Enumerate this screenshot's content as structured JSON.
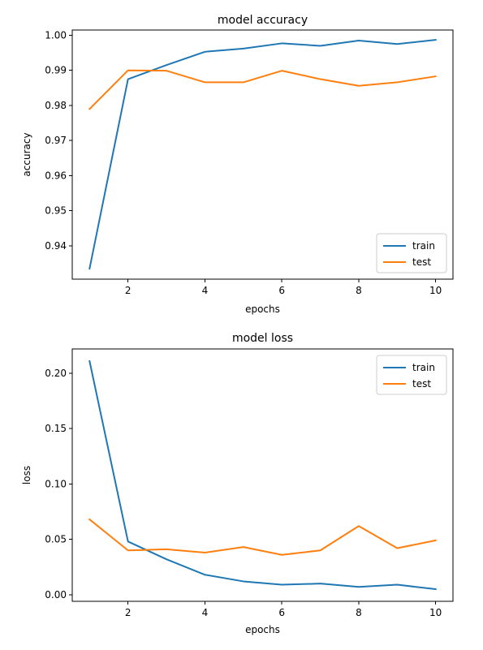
{
  "chart_data": [
    {
      "type": "line",
      "title": "model accuracy",
      "xlabel": "epochs",
      "ylabel": "accuracy",
      "xlim": [
        0.55,
        10.45
      ],
      "ylim": [
        0.9305,
        1.0015
      ],
      "xticks": [
        2,
        4,
        6,
        8,
        10
      ],
      "yticks": [
        0.94,
        0.95,
        0.96,
        0.97,
        0.98,
        0.99,
        1.0
      ],
      "ytick_labels": [
        "0.94",
        "0.95",
        "0.96",
        "0.97",
        "0.98",
        "0.99",
        "1.00"
      ],
      "legend_position": "lower-right",
      "grid": false,
      "x": [
        1,
        2,
        3,
        4,
        5,
        6,
        7,
        8,
        9,
        10
      ],
      "series": [
        {
          "name": "train",
          "color": "#1f77b4",
          "values": [
            0.9335,
            0.9875,
            0.9915,
            0.9953,
            0.9962,
            0.9977,
            0.997,
            0.9985,
            0.9975,
            0.9987
          ]
        },
        {
          "name": "test",
          "color": "#ff7f0e",
          "values": [
            0.979,
            0.99,
            0.9899,
            0.9866,
            0.9866,
            0.9899,
            0.9875,
            0.9856,
            0.9866,
            0.9883
          ]
        }
      ]
    },
    {
      "type": "line",
      "title": "model loss",
      "xlabel": "epochs",
      "ylabel": "loss",
      "xlim": [
        0.55,
        10.45
      ],
      "ylim": [
        -0.006,
        0.222
      ],
      "xticks": [
        2,
        4,
        6,
        8,
        10
      ],
      "yticks": [
        0.0,
        0.05,
        0.1,
        0.15,
        0.2
      ],
      "ytick_labels": [
        "0.00",
        "0.05",
        "0.10",
        "0.15",
        "0.20"
      ],
      "legend_position": "upper-right",
      "grid": false,
      "x": [
        1,
        2,
        3,
        4,
        5,
        6,
        7,
        8,
        9,
        10
      ],
      "series": [
        {
          "name": "train",
          "color": "#1f77b4",
          "values": [
            0.211,
            0.048,
            0.032,
            0.018,
            0.012,
            0.009,
            0.01,
            0.007,
            0.009,
            0.005
          ]
        },
        {
          "name": "test",
          "color": "#ff7f0e",
          "values": [
            0.068,
            0.04,
            0.041,
            0.038,
            0.043,
            0.036,
            0.04,
            0.062,
            0.042,
            0.049
          ]
        }
      ]
    }
  ]
}
